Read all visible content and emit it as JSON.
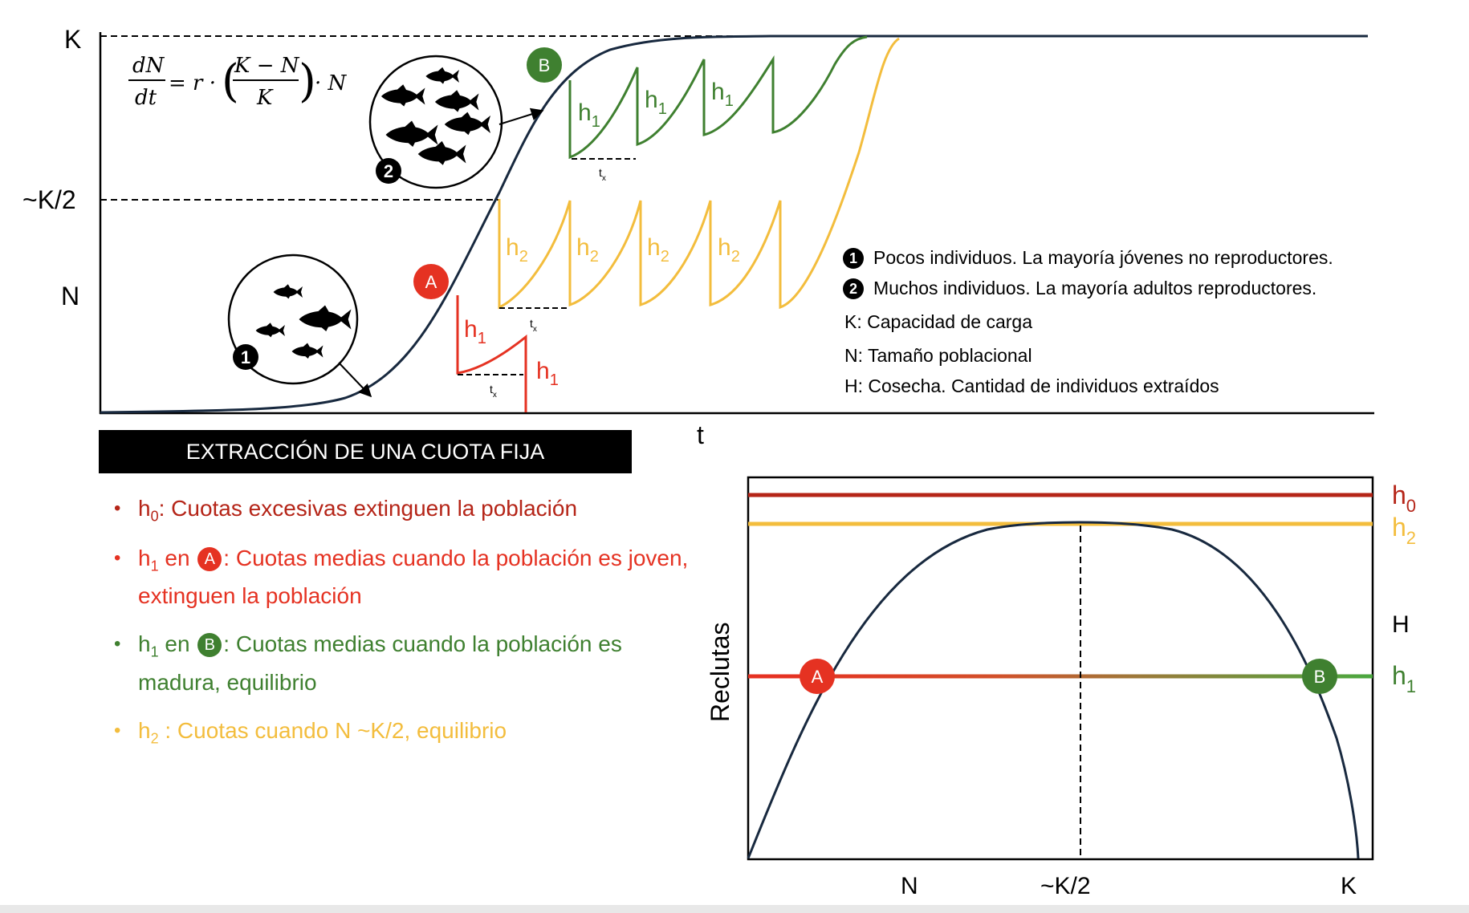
{
  "top_chart": {
    "y_labels": {
      "k": "K",
      "k_half": "~K/2",
      "n": "N"
    },
    "x_label": "t",
    "equation": {
      "lhs_num": "dN",
      "lhs_den": "dt",
      "rhs_a": "= r ·",
      "frac_num": "K − N",
      "frac_den": "K",
      "rhs_b": "· N"
    },
    "point_a": "A",
    "point_b": "B",
    "harvest_labels": {
      "h1": "h",
      "h1_sub": "1",
      "h2": "h",
      "h2_sub": "2",
      "tx": "t",
      "tx_sub": "x"
    },
    "circle_1_number": "1",
    "circle_2_number": "2"
  },
  "legend": [
    {
      "number": "1",
      "text": "Pocos individuos. La mayoría jóvenes no reproductores."
    },
    {
      "number": "2",
      "text": "Muchos individuos. La mayoría adultos reproductores."
    },
    {
      "number": "",
      "text": "K:  Capacidad de carga"
    },
    {
      "number": "",
      "text": "N:  Tamaño poblacional"
    },
    {
      "number": "",
      "text": "H:  Cosecha. Cantidad de individuos extraídos"
    }
  ],
  "banner": "EXTRACCIÓN DE UNA CUOTA FIJA",
  "list": [
    {
      "sym": "h",
      "sub": "0",
      "pre": "",
      "badge": "",
      "text": ":  Cuotas excesivas extinguen la población",
      "color": "#b52518"
    },
    {
      "sym": "h",
      "sub": "1",
      "pre": " en ",
      "badge": "A",
      "text": ": Cuotas medias cuando la población es joven, extinguen la población",
      "color": "#e53222"
    },
    {
      "sym": "h",
      "sub": "1",
      "pre": " en ",
      "badge": "B",
      "text": ": Cuotas medias cuando la población es madura, equilibrio",
      "color": "#3f8030"
    },
    {
      "sym": "h",
      "sub": "2",
      "pre": "",
      "badge": "",
      "text": " : Cuotas cuando N ~K/2, equilibrio",
      "color": "#f3bd3d"
    }
  ],
  "bottom_chart": {
    "y_label": "Reclutas",
    "x_ticks": [
      "N",
      "~K/2",
      "K"
    ],
    "right_labels": {
      "h0": "h",
      "h0_sub": "0",
      "h2": "h",
      "h2_sub": "2",
      "H": "H",
      "h1": "h",
      "h1_sub": "1"
    },
    "point_a": "A",
    "point_b": "B"
  },
  "colors": {
    "curve": "#18293f",
    "h0": "#b52518",
    "h1_a": "#e53222",
    "h1_b": "#3f8030",
    "h2": "#f3bd3d",
    "badge_green": "#3f8030",
    "badge_red": "#e53222"
  },
  "chart_data": [
    {
      "type": "line",
      "xlabel": "t",
      "ylabel": "N",
      "y_ticks": [
        "N",
        "~K/2",
        "K"
      ],
      "series": [],
      "annotations": [
        "A",
        "B"
      ]
    },
    {
      "type": "line",
      "xlabel": "",
      "ylabel": "Reclutas",
      "x_ticks": [
        "N",
        "~K/2",
        "K"
      ],
      "series": [
        {
          "name": "h",
          "shape": "parabola"
        },
        {
          "name": "h0",
          "constant": "h0"
        },
        {
          "name": "h2",
          "constant": "h2"
        },
        {
          "name": "h1",
          "constant": "h1"
        }
      ],
      "annotations": [
        "A",
        "B"
      ]
    }
  ]
}
